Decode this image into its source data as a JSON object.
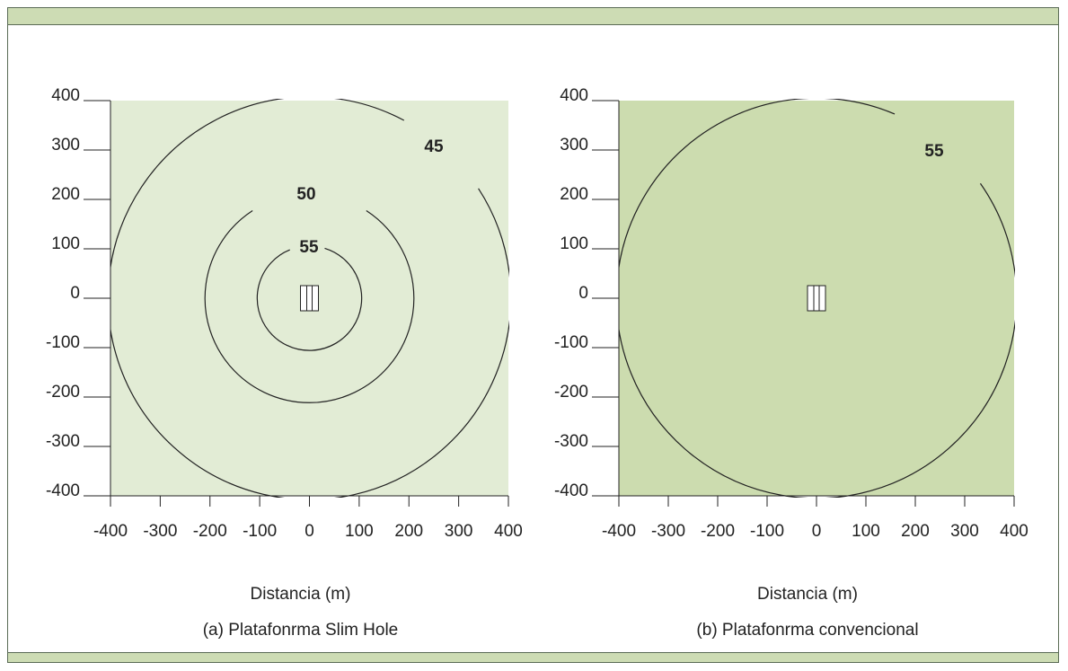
{
  "colors": {
    "band": "#cddcb4",
    "panel_a_fill": "#e2ecd5",
    "panel_b_fill": "#ccdcaf",
    "line": "#222222"
  },
  "chart_data": [
    {
      "type": "contour",
      "xlabel": "Distancia (m)",
      "caption": "(a) Platafonrma Slim Hole",
      "xlim": [
        -400,
        400
      ],
      "ylim": [
        -400,
        400
      ],
      "xticks": [
        "-400",
        "-300",
        "-200",
        "-100",
        "0",
        "100",
        "200",
        "300",
        "400"
      ],
      "yticks": [
        "400",
        "300",
        "200",
        "100",
        "0",
        "-100",
        "-200",
        "-300",
        "-400"
      ],
      "contours": [
        {
          "label": "55",
          "radius": 105,
          "center": [
            0,
            0
          ],
          "gap_deg": [
            73,
            112
          ]
        },
        {
          "label": "50",
          "radius": 210,
          "center": [
            0,
            0
          ],
          "gap_deg": [
            57,
            123
          ]
        },
        {
          "label": "45",
          "radius": 405,
          "center": [
            0,
            0
          ],
          "gap_deg": [
            33,
            62
          ]
        }
      ],
      "well_symbol": {
        "center": [
          0,
          0
        ]
      }
    },
    {
      "type": "contour",
      "xlabel": "Distancia (m)",
      "caption": "(b) Platafonrma convencional",
      "xlim": [
        -400,
        400
      ],
      "ylim": [
        -400,
        400
      ],
      "xticks": [
        "-400",
        "-300",
        "-200",
        "-100",
        "0",
        "100",
        "200",
        "300",
        "400"
      ],
      "yticks": [
        "400",
        "300",
        "200",
        "100",
        "0",
        "-100",
        "-200",
        "-300",
        "-400"
      ],
      "contours": [
        {
          "label": "55",
          "radius": 405,
          "center": [
            0,
            0
          ],
          "gap_deg": [
            35,
            67
          ]
        }
      ],
      "well_symbol": {
        "center": [
          0,
          0
        ]
      }
    }
  ]
}
